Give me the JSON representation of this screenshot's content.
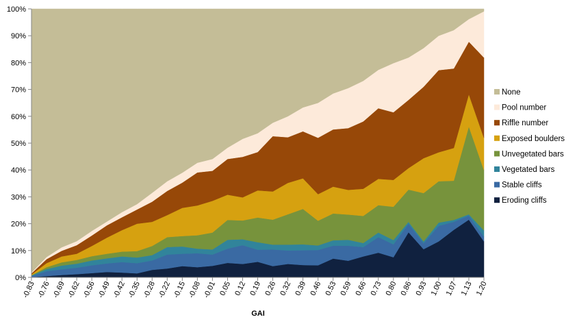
{
  "chart_data": {
    "type": "area",
    "stacked": true,
    "percent": true,
    "title": "",
    "xlabel": "GAI",
    "ylabel": "",
    "ylim": [
      0,
      100
    ],
    "yticks": [
      "0%",
      "10%",
      "20%",
      "30%",
      "40%",
      "50%",
      "60%",
      "70%",
      "80%",
      "90%",
      "100%"
    ],
    "legend_position": "right",
    "grid": false,
    "categories": [
      "-0.83",
      "-0.76",
      "-0.69",
      "-0.62",
      "-0.56",
      "-0.49",
      "-0.42",
      "-0.35",
      "-0.28",
      "-0.22",
      "-0.15",
      "-0.08",
      "-0.01",
      "0.05",
      "0.12",
      "0.19",
      "0.26",
      "0.32",
      "0.39",
      "0.46",
      "0.53",
      "0.59",
      "0.66",
      "0.73",
      "0.80",
      "0.86",
      "0.93",
      "1.00",
      "1.07",
      "1.13",
      "1.20"
    ],
    "series": [
      {
        "name": "Eroding cliffs",
        "color": "#10213f",
        "values": [
          0.1,
          0.5,
          0.9,
          1.2,
          1.6,
          2.0,
          1.8,
          1.5,
          2.8,
          3.3,
          4.2,
          3.8,
          4.3,
          5.4,
          5.0,
          5.8,
          4.2,
          5.0,
          4.6,
          4.5,
          7.0,
          6.2,
          7.8,
          9.2,
          7.5,
          16.8,
          10.5,
          13.4,
          17.7,
          21.5,
          13.4
        ]
      },
      {
        "name": "Stable cliffs",
        "color": "#3a6aa3",
        "values": [
          0.4,
          1.8,
          2.1,
          2.4,
          2.9,
          3.2,
          3.9,
          3.8,
          3.5,
          5.2,
          4.6,
          5.2,
          4.2,
          5.3,
          7.0,
          4.5,
          6.2,
          5.0,
          5.5,
          5.7,
          4.8,
          5.6,
          3.5,
          5.8,
          4.8,
          3.2,
          2.2,
          5.8,
          3.0,
          1.5,
          1.8
        ]
      },
      {
        "name": "Vegetated bars",
        "color": "#31849b",
        "values": [
          0.2,
          0.8,
          1.4,
          1.5,
          1.8,
          1.9,
          2.1,
          2.1,
          2.0,
          2.8,
          2.7,
          1.7,
          1.9,
          3.3,
          2.2,
          2.8,
          1.8,
          2.2,
          2.2,
          1.7,
          2.0,
          2.2,
          1.5,
          1.7,
          1.6,
          0.7,
          0.7,
          1.2,
          0.7,
          0.5,
          2.3
        ]
      },
      {
        "name": "Unvegetated bars",
        "color": "#77933c",
        "values": [
          0.1,
          0.7,
          1.2,
          1.4,
          1.6,
          1.7,
          1.8,
          2.4,
          3.4,
          3.7,
          3.9,
          5.0,
          6.3,
          7.4,
          7.0,
          9.2,
          9.3,
          11.3,
          13.2,
          9.2,
          10.0,
          9.4,
          10.1,
          10.2,
          12.4,
          12.0,
          18.0,
          15.4,
          14.6,
          32.7,
          22.5
        ]
      },
      {
        "name": "Exposed boulders",
        "color": "#d6a110",
        "values": [
          0.3,
          1.5,
          2.2,
          2.3,
          3.8,
          6.0,
          8.0,
          10.2,
          9.0,
          8.2,
          10.5,
          11.1,
          11.8,
          9.4,
          8.6,
          10.1,
          10.5,
          11.7,
          11.4,
          9.9,
          10.0,
          9.2,
          10.1,
          9.8,
          10.0,
          8.0,
          13.0,
          10.8,
          12.2,
          12.0,
          12.0
        ]
      },
      {
        "name": "Riffle number",
        "color": "#974808",
        "values": [
          0.4,
          1.5,
          2.1,
          3.2,
          3.9,
          4.6,
          4.8,
          5.3,
          7.5,
          9.0,
          9.4,
          12.3,
          11.2,
          13.3,
          15.1,
          14.3,
          20.6,
          17.0,
          17.5,
          21.0,
          21.3,
          23.0,
          25.1,
          26.3,
          25.2,
          25.4,
          26.6,
          30.6,
          29.6,
          19.6,
          29.9
        ]
      },
      {
        "name": "Pool number",
        "color": "#fdeada",
        "values": [
          0.3,
          0.8,
          1.3,
          1.5,
          1.7,
          1.4,
          1.9,
          2.0,
          3.3,
          3.6,
          3.7,
          3.6,
          4.4,
          4.2,
          6.7,
          7.0,
          5.0,
          7.8,
          8.9,
          13.0,
          13.4,
          14.9,
          15.1,
          14.3,
          18.3,
          15.8,
          14.4,
          12.8,
          14.3,
          8.4,
          17.2
        ]
      },
      {
        "name": "None",
        "color": "#c4bd97",
        "values": [
          98.2,
          92.4,
          88.8,
          86.5,
          82.7,
          79.2,
          75.7,
          72.7,
          68.5,
          64.2,
          61.0,
          57.3,
          55.9,
          51.7,
          48.4,
          46.3,
          42.4,
          40.0,
          36.7,
          35.0,
          31.5,
          29.5,
          26.8,
          22.7,
          20.2,
          18.1,
          14.6,
          10.0,
          7.9,
          3.8,
          0.9
        ]
      }
    ]
  }
}
